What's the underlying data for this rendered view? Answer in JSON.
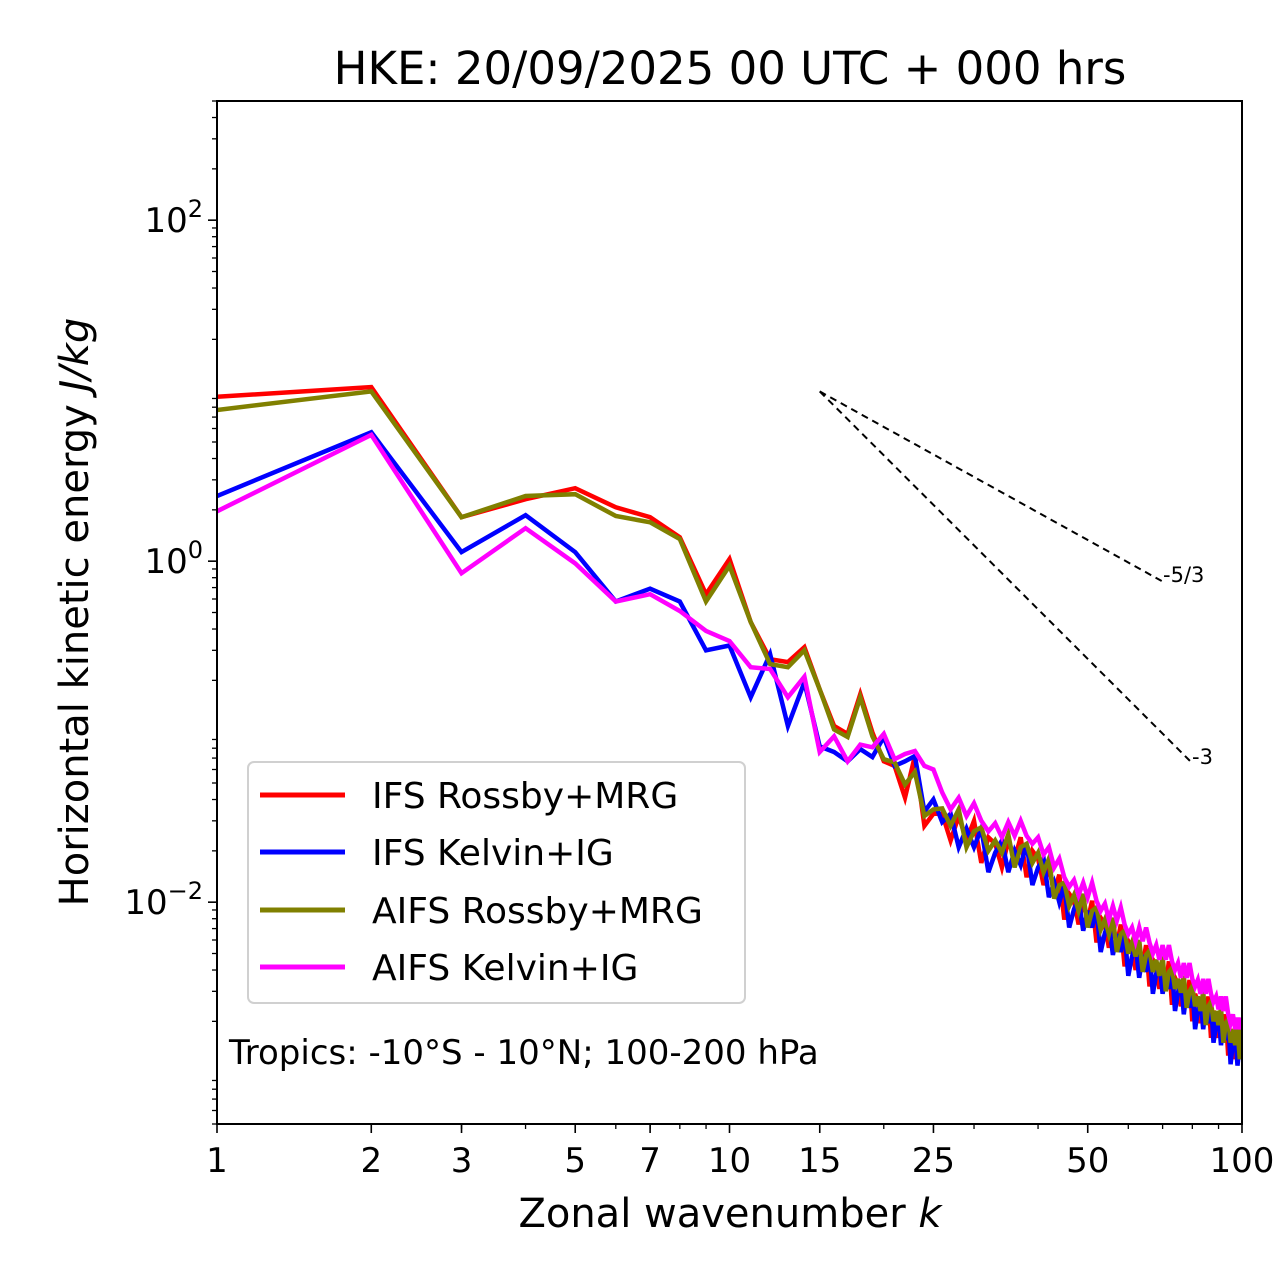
{
  "chart_data": {
    "type": "line",
    "title": "HKE: 20/09/2025 00 UTC + 000 hrs",
    "xlabel": "Zonal wavenumber",
    "xlabel_italic": "k",
    "ylabel": "Horizontal kinetic energy",
    "ylabel_italic": "J/kg",
    "xscale": "log",
    "yscale": "log",
    "xlim": [
      1,
      100
    ],
    "ylim": [
      0.0005,
      500
    ],
    "xticks": [
      1,
      2,
      3,
      5,
      7,
      10,
      15,
      25,
      50,
      100
    ],
    "xtick_labels": [
      "1",
      "2",
      "3",
      "5",
      "7",
      "10",
      "15",
      "25",
      "50",
      "100"
    ],
    "yticks": [
      100,
      1,
      0.01
    ],
    "ytick_labels": [
      {
        "base": "10",
        "exp": "2"
      },
      {
        "base": "10",
        "exp": "0"
      },
      {
        "base": "10",
        "exp": "−2"
      }
    ],
    "grid": false,
    "legend_position": "lower-left",
    "annotation": "Tropics: -10°S - 10°N; 100-200 hPa",
    "reference_lines": [
      {
        "label": "-5/3",
        "slope": -1.6667,
        "k_start": 15,
        "k_end": 70,
        "e_start": 9.9
      },
      {
        "label": "-3",
        "slope": -3,
        "k_start": 15,
        "k_end": 80,
        "e_start": 9.9
      }
    ],
    "x": "wavenumbers 1..100",
    "series": [
      {
        "name": "IFS Rossby+MRG",
        "color": "#ff0000",
        "values": [
          9.2,
          10.5,
          1.81,
          2.31,
          2.68,
          2.07,
          1.81,
          1.38,
          0.64,
          1.03,
          0.44,
          0.266,
          0.256,
          0.313,
          0.177,
          0.108,
          0.097,
          0.166,
          0.099,
          0.067,
          0.063,
          0.041,
          0.072,
          0.028,
          0.033,
          0.033,
          0.023,
          0.032,
          0.023,
          0.03,
          0.017,
          0.024,
          0.022,
          0.016,
          0.023,
          0.018,
          0.024,
          0.014,
          0.02,
          0.018,
          0.0126,
          0.016,
          0.0115,
          0.0145,
          0.0079,
          0.0112,
          0.0102,
          0.0074,
          0.0102,
          0.0078,
          0.0102,
          0.0058,
          0.0081,
          0.0074,
          0.0054,
          0.0074,
          0.0056,
          0.0074,
          0.0042,
          0.0059,
          0.0054,
          0.004,
          0.0055,
          0.0043,
          0.0056,
          0.0032,
          0.0046,
          0.0043,
          0.0031,
          0.0044,
          0.0033,
          0.0045,
          0.0025,
          0.0036,
          0.0033,
          0.00245,
          0.0034,
          0.0026,
          0.0035,
          0.002,
          0.0029,
          0.0026,
          0.00195,
          0.00275,
          0.0021,
          0.0028,
          0.0016,
          0.0023,
          0.0021,
          0.0016,
          0.0022,
          0.00165,
          0.0022,
          0.00126,
          0.0018,
          0.00165,
          0.0012,
          0.00165,
          0.0013,
          0.0013
        ]
      },
      {
        "name": "IFS Kelvin+IG",
        "color": "#0000ff",
        "values": [
          2.41,
          5.7,
          1.13,
          1.86,
          1.13,
          0.58,
          0.69,
          0.58,
          0.3,
          0.32,
          0.159,
          0.285,
          0.108,
          0.195,
          0.082,
          0.076,
          0.067,
          0.079,
          0.071,
          0.093,
          0.063,
          0.067,
          0.072,
          0.034,
          0.04,
          0.0295,
          0.033,
          0.021,
          0.027,
          0.021,
          0.027,
          0.015,
          0.0195,
          0.023,
          0.015,
          0.02,
          0.0165,
          0.022,
          0.0126,
          0.016,
          0.018,
          0.0107,
          0.013,
          0.01,
          0.0126,
          0.0071,
          0.0091,
          0.0105,
          0.0068,
          0.0089,
          0.0071,
          0.0091,
          0.0051,
          0.0066,
          0.0076,
          0.0049,
          0.0065,
          0.0051,
          0.0066,
          0.0037,
          0.0048,
          0.0056,
          0.0036,
          0.0049,
          0.0039,
          0.0051,
          0.0029,
          0.0038,
          0.0044,
          0.0029,
          0.0038,
          0.0031,
          0.004,
          0.0023,
          0.00295,
          0.0035,
          0.0022,
          0.003,
          0.0024,
          0.0032,
          0.0018,
          0.0023,
          0.00275,
          0.0018,
          0.0024,
          0.00195,
          0.0026,
          0.0015,
          0.0019,
          0.0022,
          0.00145,
          0.0019,
          0.00155,
          0.002,
          0.00112,
          0.0015,
          0.0017,
          0.0011,
          0.0015,
          0.0012
        ]
      },
      {
        "name": "AIFS Rossby+MRG",
        "color": "#808000",
        "values": [
          7.7,
          9.9,
          1.81,
          2.41,
          2.47,
          1.84,
          1.69,
          1.35,
          0.58,
          0.94,
          0.44,
          0.249,
          0.239,
          0.3,
          0.177,
          0.103,
          0.093,
          0.159,
          0.094,
          0.069,
          0.066,
          0.049,
          0.058,
          0.032,
          0.035,
          0.0355,
          0.028,
          0.035,
          0.021,
          0.026,
          0.0275,
          0.02,
          0.023,
          0.0195,
          0.025,
          0.016,
          0.021,
          0.022,
          0.017,
          0.0195,
          0.015,
          0.018,
          0.0105,
          0.0126,
          0.013,
          0.0095,
          0.011,
          0.0089,
          0.0112,
          0.0071,
          0.0089,
          0.0093,
          0.0069,
          0.0079,
          0.0065,
          0.0081,
          0.0051,
          0.0065,
          0.0068,
          0.005,
          0.0058,
          0.0048,
          0.006,
          0.0039,
          0.0049,
          0.0052,
          0.0039,
          0.0046,
          0.0037,
          0.0048,
          0.003,
          0.0039,
          0.0041,
          0.0031,
          0.00355,
          0.00295,
          0.0037,
          0.0024,
          0.003,
          0.0032,
          0.00245,
          0.0028,
          0.0023,
          0.003,
          0.0019,
          0.00245,
          0.0026,
          0.002,
          0.0023,
          0.0019,
          0.0024,
          0.0015,
          0.00195,
          0.00205,
          0.0015,
          0.0018,
          0.00145,
          0.0018,
          0.0012,
          0.0021
        ]
      },
      {
        "name": "AIFS Kelvin+IG",
        "color": "#ff00ff",
        "values": [
          1.96,
          5.5,
          0.85,
          1.56,
          0.97,
          0.58,
          0.64,
          0.51,
          0.39,
          0.34,
          0.239,
          0.233,
          0.159,
          0.21,
          0.076,
          0.094,
          0.067,
          0.084,
          0.081,
          0.097,
          0.069,
          0.074,
          0.077,
          0.063,
          0.06,
          0.044,
          0.035,
          0.041,
          0.032,
          0.038,
          0.03,
          0.026,
          0.029,
          0.024,
          0.0295,
          0.0245,
          0.03,
          0.0245,
          0.022,
          0.024,
          0.019,
          0.021,
          0.016,
          0.018,
          0.014,
          0.0123,
          0.0135,
          0.011,
          0.013,
          0.0107,
          0.013,
          0.0102,
          0.0089,
          0.0098,
          0.0079,
          0.0095,
          0.0078,
          0.0093,
          0.0074,
          0.0065,
          0.0071,
          0.0059,
          0.0071,
          0.0059,
          0.0071,
          0.0058,
          0.005,
          0.0056,
          0.0046,
          0.0056,
          0.0046,
          0.0056,
          0.0045,
          0.004,
          0.0044,
          0.0036,
          0.0044,
          0.0036,
          0.0044,
          0.00355,
          0.0032,
          0.0035,
          0.0029,
          0.00355,
          0.0029,
          0.00355,
          0.0029,
          0.0026,
          0.0028,
          0.00235,
          0.0028,
          0.0023,
          0.0028,
          0.0022,
          0.00195,
          0.0022,
          0.0018,
          0.0021,
          0.0018,
          0.0021
        ]
      }
    ]
  }
}
